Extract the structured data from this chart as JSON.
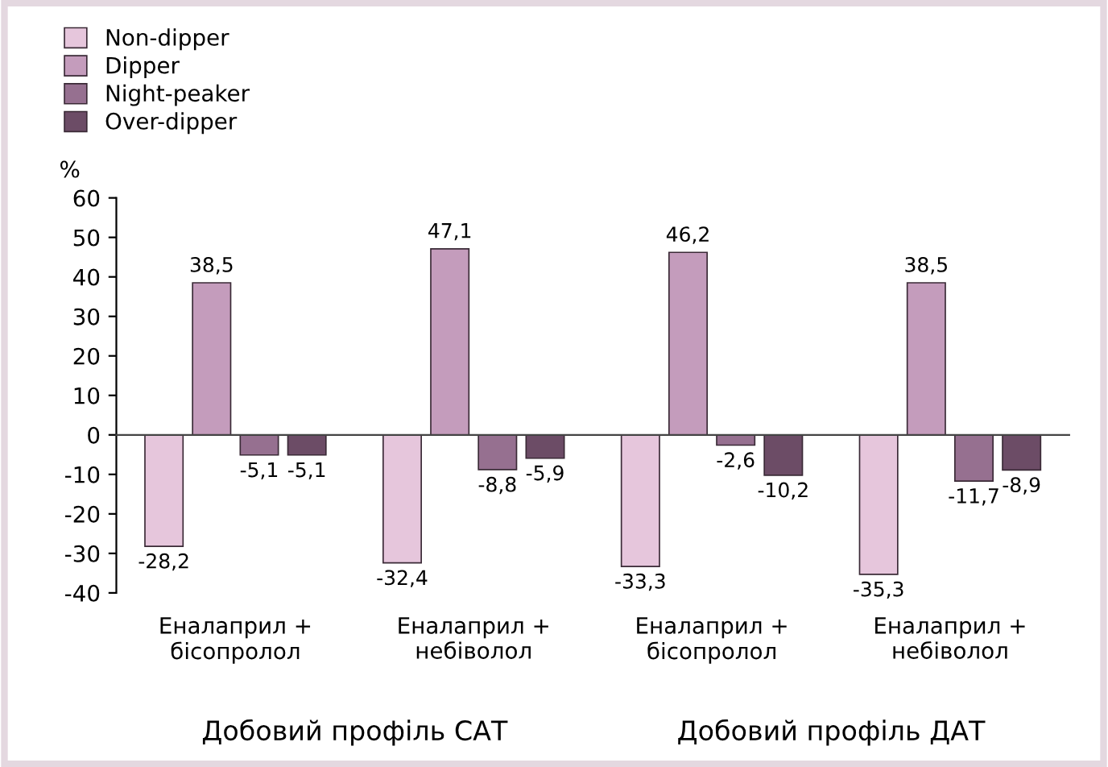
{
  "chart_data": {
    "type": "bar",
    "ylabel": "%",
    "categories": [
      "Еналаприл +\nбісопролол",
      "Еналаприл +\nнебіволол",
      "Еналаприл +\nбісопролол",
      "Еналаприл +\nнебіволол"
    ],
    "series": [
      {
        "name": "Non-dipper",
        "color": "#e6c6dc",
        "values": [
          -28.2,
          -32.4,
          -33.3,
          -35.3
        ],
        "value_labels": [
          "-28,2",
          "-32,4",
          "-33,3",
          "-35,3"
        ]
      },
      {
        "name": "Dipper",
        "color": "#c49cbc",
        "values": [
          38.5,
          47.1,
          46.2,
          38.5
        ],
        "value_labels": [
          "38,5",
          "47,1",
          "46,2",
          "38,5"
        ]
      },
      {
        "name": "Night-peaker",
        "color": "#967090",
        "values": [
          -5.1,
          -8.8,
          -2.6,
          -11.7
        ],
        "value_labels": [
          "-5,1",
          "-8,8",
          "-2,6",
          "-11,7"
        ]
      },
      {
        "name": "Over-dipper",
        "color": "#6c4c66",
        "values": [
          -5.1,
          -5.9,
          -10.2,
          -8.9
        ],
        "value_labels": [
          "-5,1",
          "-5,9",
          "-10,2",
          "-8,9"
        ]
      }
    ],
    "ylim": [
      -40,
      60
    ],
    "yticks": [
      -40,
      -30,
      -20,
      -10,
      0,
      10,
      20,
      30,
      40,
      50,
      60
    ],
    "annotations": [
      "Добовий профіль САТ",
      "Добовий профіль ДАТ"
    ],
    "legend": "top left"
  }
}
